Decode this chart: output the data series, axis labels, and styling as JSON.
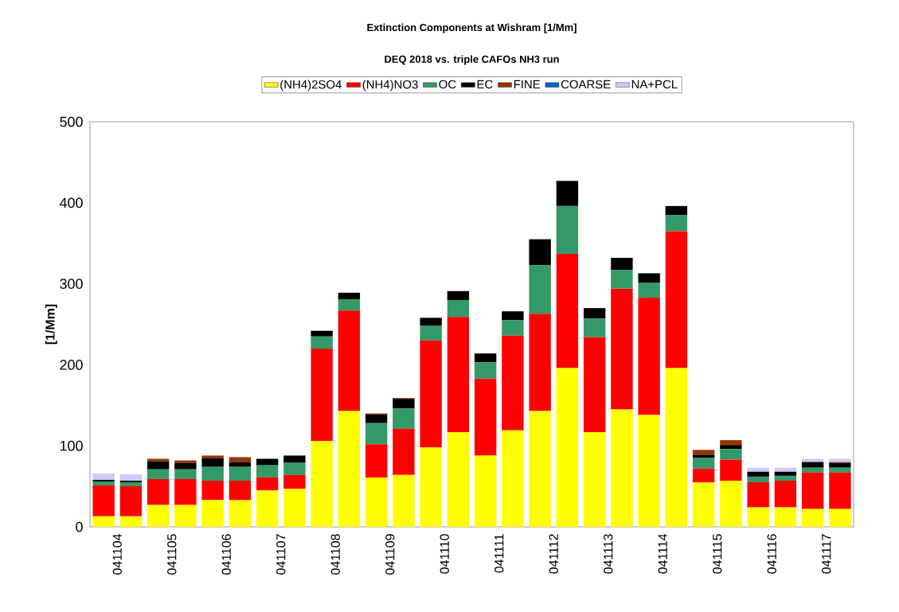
{
  "chart_data": {
    "type": "bar",
    "stacked": true,
    "title": "Extinction Components at Wishram [1/Mm]",
    "subtitle": "DEQ 2018 vs. triple CAFOs NH3 run",
    "ylabel": "[1/Mm]",
    "categories": [
      "041104",
      null,
      "041105",
      null,
      "041106",
      null,
      "041107",
      null,
      "041108",
      null,
      "041109",
      null,
      "041110",
      null,
      "041111",
      null,
      "041112",
      null,
      "041113",
      null,
      "041114",
      null,
      "041115",
      null,
      "041116",
      null,
      "041117",
      null
    ],
    "series": [
      {
        "name": "(NH4)2SO4",
        "color": "#ffff00",
        "values": [
          13,
          13,
          27,
          27,
          33,
          33,
          45,
          47,
          106,
          143,
          61,
          64,
          98,
          117,
          88,
          119,
          143,
          196,
          117,
          145,
          138,
          196,
          55,
          57,
          24,
          24,
          22,
          22
        ]
      },
      {
        "name": "(NH4)NO3",
        "color": "#ff0000",
        "values": [
          38,
          37,
          32,
          32,
          24,
          24,
          16,
          17,
          114,
          124,
          41,
          57,
          132,
          142,
          95,
          117,
          120,
          141,
          117,
          149,
          145,
          169,
          17,
          26,
          31,
          33,
          45,
          45
        ]
      },
      {
        "name": "OC",
        "color": "#339966",
        "values": [
          5,
          5,
          12,
          12,
          17,
          17,
          15,
          15,
          15,
          14,
          26,
          25,
          18,
          21,
          20,
          19,
          60,
          59,
          23,
          23,
          18,
          20,
          13,
          13,
          7,
          6,
          6,
          6
        ]
      },
      {
        "name": "EC",
        "color": "#000000",
        "values": [
          2,
          2,
          10,
          8,
          11,
          6,
          8,
          9,
          7,
          8,
          11,
          12,
          10,
          11,
          11,
          11,
          32,
          31,
          13,
          15,
          12,
          11,
          4,
          5,
          6,
          5,
          7,
          6
        ]
      },
      {
        "name": "FINE",
        "color": "#993300",
        "values": [
          0,
          0,
          3,
          3,
          3,
          6,
          0,
          0,
          0,
          0,
          1,
          1,
          0,
          0,
          0,
          0,
          0,
          0,
          0,
          0,
          0,
          0,
          6,
          6,
          0,
          0,
          0,
          1
        ]
      },
      {
        "name": "COARSE",
        "color": "#0066cc",
        "values": [
          0,
          0,
          0,
          0,
          0,
          0,
          0,
          0,
          0,
          0,
          0,
          0,
          0,
          0,
          0,
          0,
          0,
          0,
          0,
          0,
          0,
          0,
          0,
          0,
          0,
          0,
          0,
          0
        ]
      },
      {
        "name": "NA+PCL",
        "color": "#ccccff",
        "values": [
          8,
          8,
          0,
          0,
          0,
          0,
          0,
          0,
          0,
          0,
          0,
          0,
          0,
          0,
          0,
          0,
          0,
          0,
          0,
          0,
          0,
          0,
          0,
          0,
          5,
          5,
          4,
          4
        ]
      }
    ],
    "ylim": [
      0,
      500
    ],
    "yticks": [
      0,
      100,
      200,
      300,
      400,
      500
    ],
    "legend": "top"
  }
}
